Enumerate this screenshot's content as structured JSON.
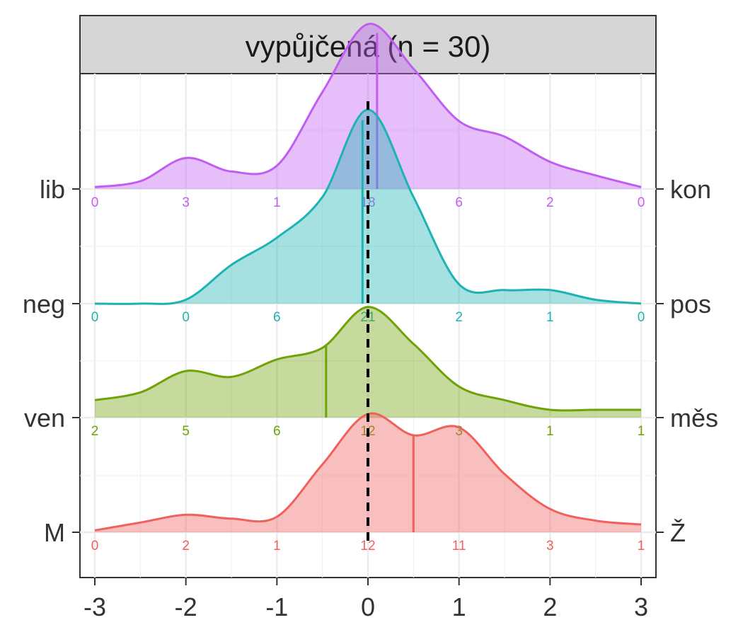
{
  "chart_data": {
    "type": "ridgeline-density",
    "facet_title": "vypůjčená (n = 30)",
    "xlim": [
      -3,
      3
    ],
    "x_ticks": [
      -3,
      -2,
      -1,
      0,
      1,
      2,
      3
    ],
    "x_tick_labels": [
      "-3",
      "-2",
      "-1",
      "0",
      "1",
      "2",
      "3"
    ],
    "reference_line_x": 0,
    "grid": true,
    "rows": [
      {
        "left_label": "M",
        "right_label": "Ž",
        "color": "#F0605D",
        "mean": 0.5,
        "counts_x": [
          -3,
          -2,
          -1,
          0,
          1,
          2,
          3
        ],
        "counts": [
          "0",
          "2",
          "1",
          "12",
          "11",
          "3",
          "1"
        ],
        "density": [
          [
            -3.0,
            0.01
          ],
          [
            -2.5,
            0.05
          ],
          [
            -2.0,
            0.09
          ],
          [
            -1.5,
            0.07
          ],
          [
            -1.0,
            0.08
          ],
          [
            -0.5,
            0.35
          ],
          [
            0.0,
            0.61
          ],
          [
            0.5,
            0.5
          ],
          [
            1.0,
            0.54
          ],
          [
            1.5,
            0.3
          ],
          [
            2.0,
            0.12
          ],
          [
            2.5,
            0.06
          ],
          [
            3.0,
            0.04
          ]
        ]
      },
      {
        "left_label": "ven",
        "right_label": "měs",
        "color": "#6FA207",
        "mean": -0.46,
        "counts_x": [
          -3,
          -2,
          -1,
          0,
          1,
          2,
          3
        ],
        "counts": [
          "2",
          "5",
          "6",
          "12",
          "3",
          "1",
          "1"
        ],
        "density": [
          [
            -3.0,
            0.09
          ],
          [
            -2.5,
            0.13
          ],
          [
            -2.0,
            0.24
          ],
          [
            -1.5,
            0.21
          ],
          [
            -1.0,
            0.3
          ],
          [
            -0.5,
            0.36
          ],
          [
            0.0,
            0.57
          ],
          [
            0.5,
            0.38
          ],
          [
            1.0,
            0.16
          ],
          [
            1.5,
            0.09
          ],
          [
            2.0,
            0.04
          ],
          [
            2.5,
            0.04
          ],
          [
            3.0,
            0.04
          ]
        ]
      },
      {
        "left_label": "neg",
        "right_label": "pos",
        "color": "#1DB3B3",
        "mean": -0.06,
        "counts_x": [
          -3,
          -2,
          -1,
          0,
          1,
          2,
          3
        ],
        "counts": [
          "0",
          "0",
          "6",
          "21",
          "2",
          "1",
          "0"
        ],
        "density": [
          [
            -3.0,
            0.0
          ],
          [
            -2.5,
            0.0
          ],
          [
            -2.0,
            0.02
          ],
          [
            -1.5,
            0.2
          ],
          [
            -1.0,
            0.34
          ],
          [
            -0.5,
            0.55
          ],
          [
            0.0,
            1.0
          ],
          [
            0.5,
            0.55
          ],
          [
            1.0,
            0.1
          ],
          [
            1.5,
            0.07
          ],
          [
            2.0,
            0.07
          ],
          [
            2.5,
            0.02
          ],
          [
            3.0,
            0.0
          ]
        ]
      },
      {
        "left_label": "lib",
        "right_label": "kon",
        "color": "#C05EF2",
        "mean": 0.1,
        "counts_x": [
          -3,
          -2,
          -1,
          0,
          1,
          2,
          3
        ],
        "counts": [
          "0",
          "3",
          "1",
          "18",
          "6",
          "2",
          "0"
        ],
        "density": [
          [
            -3.0,
            0.01
          ],
          [
            -2.5,
            0.04
          ],
          [
            -2.0,
            0.16
          ],
          [
            -1.5,
            0.09
          ],
          [
            -1.0,
            0.12
          ],
          [
            -0.5,
            0.5
          ],
          [
            0.0,
            0.85
          ],
          [
            0.5,
            0.62
          ],
          [
            1.0,
            0.35
          ],
          [
            1.5,
            0.27
          ],
          [
            2.0,
            0.14
          ],
          [
            2.5,
            0.07
          ],
          [
            3.0,
            0.01
          ]
        ]
      }
    ]
  }
}
